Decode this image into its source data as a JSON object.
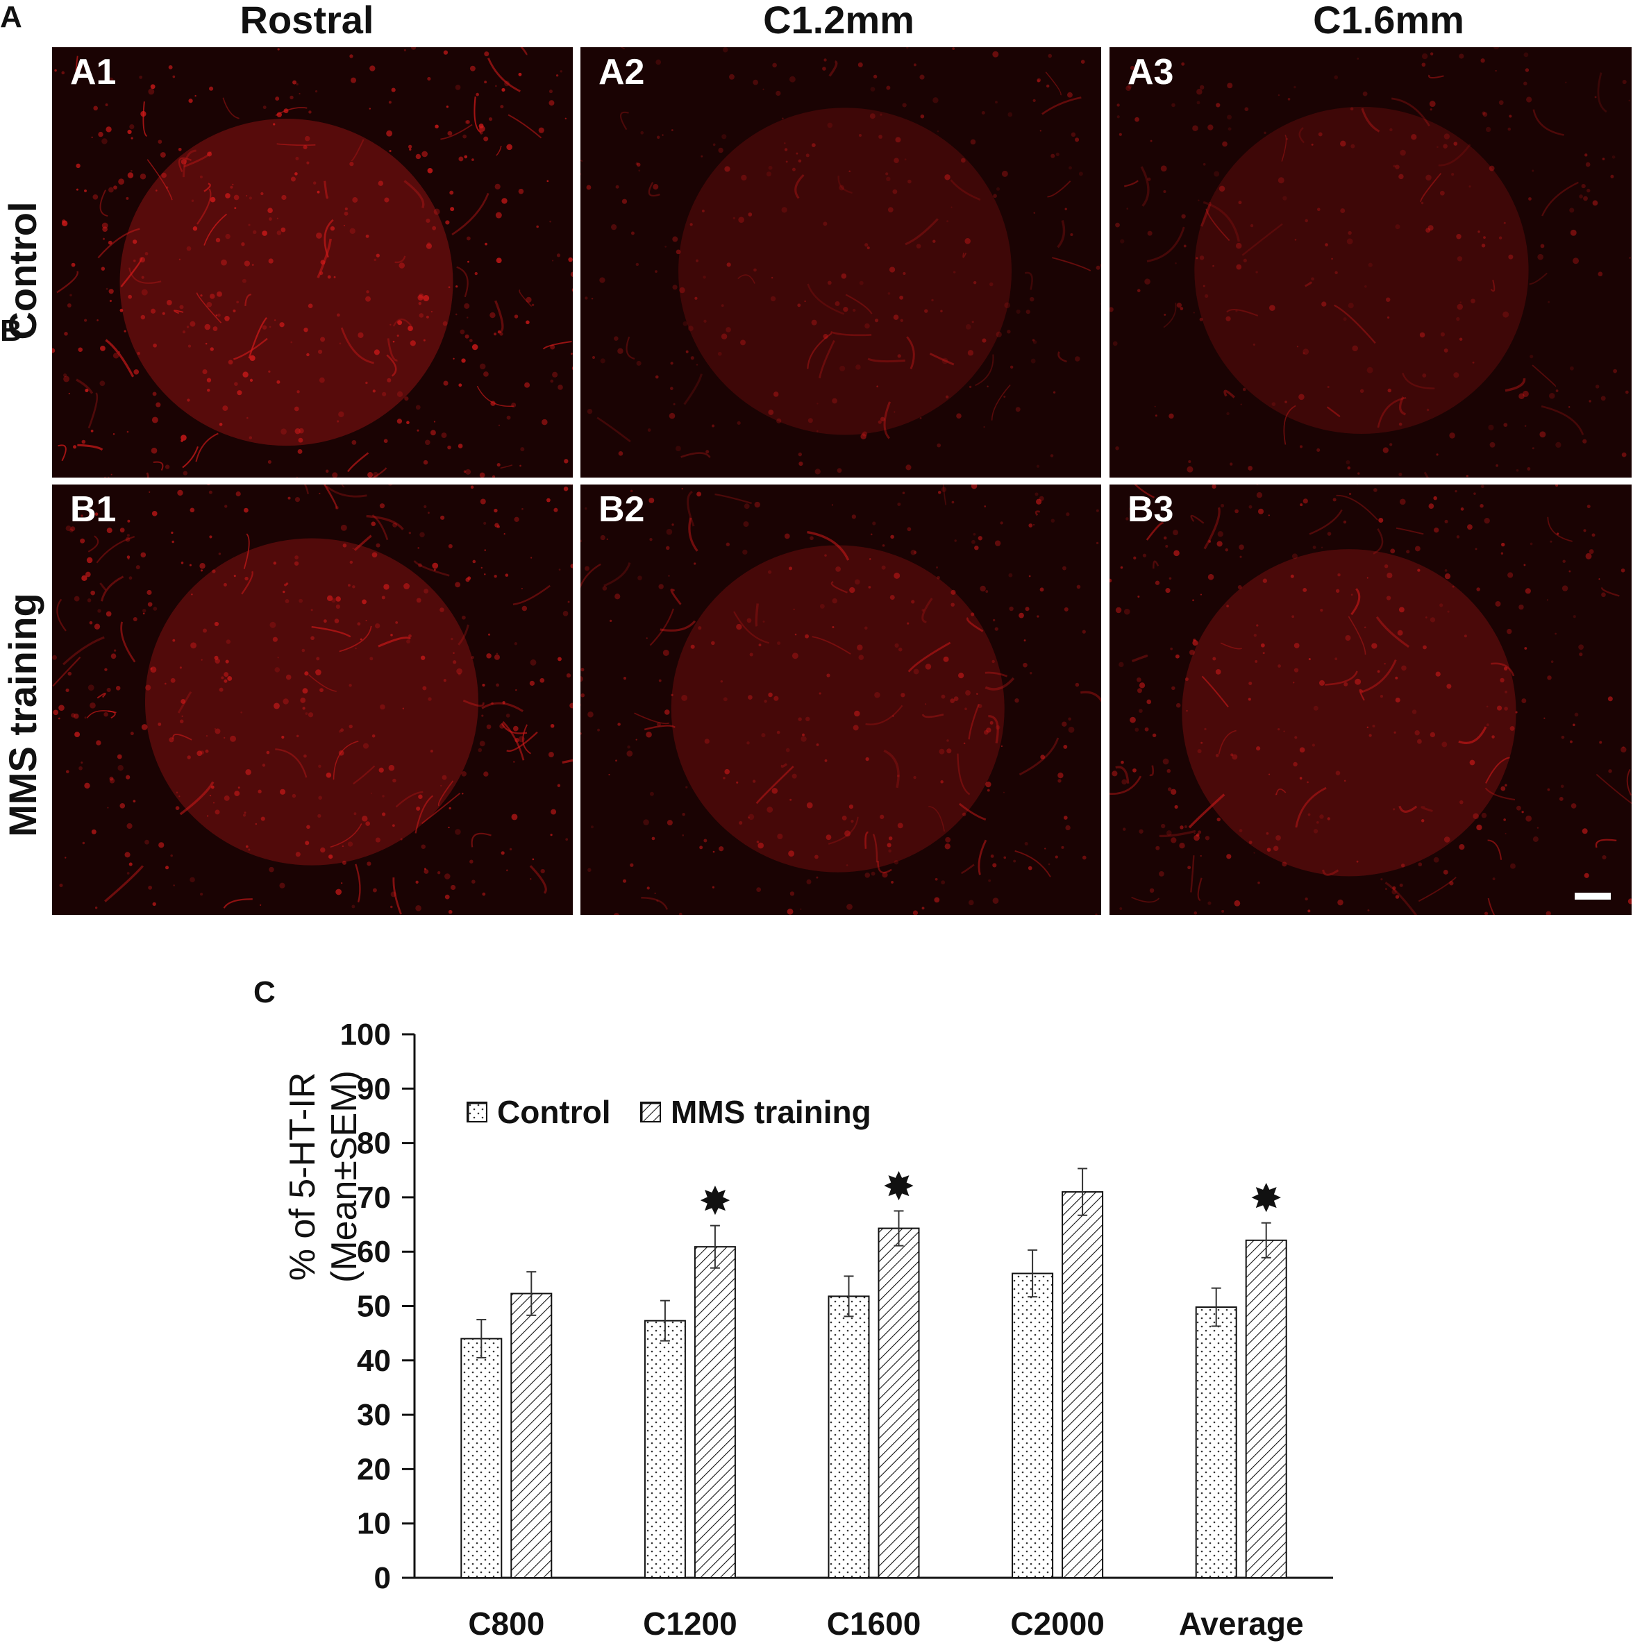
{
  "figure": {
    "panel_a_label": "A",
    "panel_b_label": "B",
    "panel_c_label": "C",
    "column_headers": [
      "Rostral",
      "C1.2mm",
      "C1.6mm"
    ],
    "row_headers": [
      "Control",
      "MMS training"
    ],
    "micrographs": [
      {
        "label": "A1",
        "tone": 0.95
      },
      {
        "label": "A2",
        "tone": 0.55
      },
      {
        "label": "A3",
        "tone": 0.55
      },
      {
        "label": "B1",
        "tone": 0.85
      },
      {
        "label": "B2",
        "tone": 0.7
      },
      {
        "label": "B3",
        "tone": 0.75
      }
    ],
    "colors": {
      "fluorescence": "#d31a1a",
      "background": "#1a0303",
      "axis": "#111111"
    }
  },
  "chart_data": {
    "type": "bar",
    "categories": [
      "C800",
      "C1200",
      "C1600",
      "C2000",
      "Average"
    ],
    "series": [
      {
        "name": "Control",
        "pattern": "dotted",
        "values": [
          44,
          47.3,
          51.8,
          56,
          49.8
        ],
        "errors": [
          3.5,
          3.7,
          3.7,
          4.3,
          3.5
        ]
      },
      {
        "name": "MMS training",
        "pattern": "hatched",
        "values": [
          52.3,
          60.9,
          64.3,
          71,
          62.1
        ],
        "errors": [
          4,
          3.9,
          3.2,
          4.3,
          3.2
        ]
      }
    ],
    "significance": [
      false,
      true,
      true,
      false,
      true
    ],
    "significance_marker": "✸",
    "title": "",
    "xlabel": "",
    "ylabel": "% of 5-HT-IR (Mean±SEM)",
    "ylim": [
      0,
      100
    ],
    "yticks": [
      "0",
      "10",
      "20",
      "30",
      "40",
      "50",
      "60",
      "70",
      "80",
      "90",
      "100"
    ],
    "legend_position": "top-left",
    "grid": false
  }
}
